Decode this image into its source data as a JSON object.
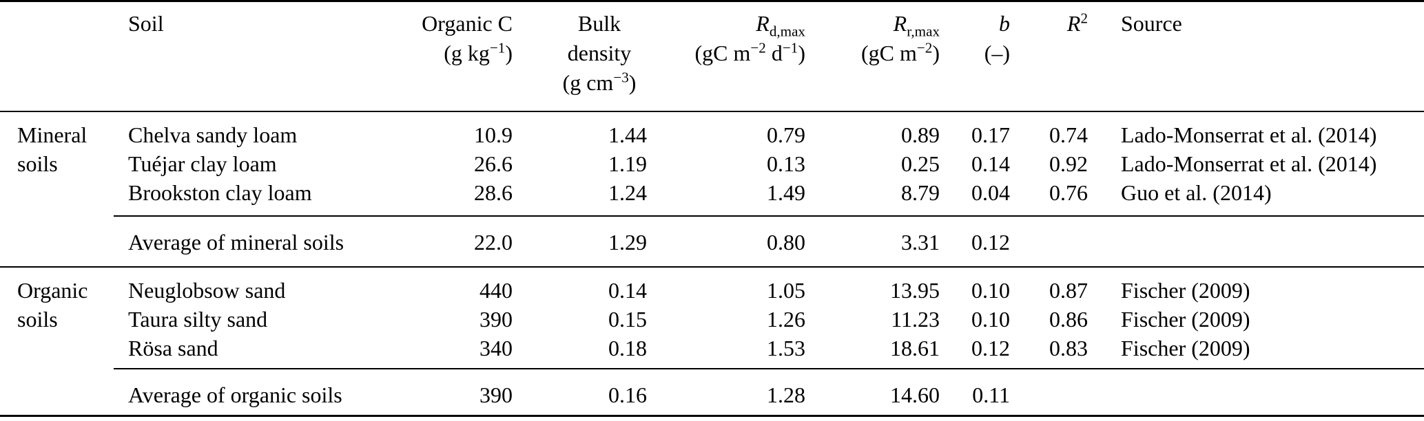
{
  "colors": {
    "background": "#ffffff",
    "text": "#000000",
    "rule": "#000000"
  },
  "header": {
    "group": "",
    "soil": "Soil",
    "organic_c": [
      "Organic C",
      "(g kg^{−1})"
    ],
    "bulk_density": [
      "Bulk",
      "density",
      "(g cm^{−3})"
    ],
    "rd_max": [
      "*R*_{d,max}",
      "(gC m^{−2} d^{−1})"
    ],
    "rr_max": [
      "*R*_{r,max}",
      "(gC m^{−2})"
    ],
    "b": [
      "*b*",
      "(–)"
    ],
    "r2": [
      "*R*^{2}"
    ],
    "source": "Source"
  },
  "sections": [
    {
      "group": [
        "Mineral",
        "soils"
      ],
      "rows": [
        {
          "soil": "Chelva sandy loam",
          "organic_c": "10.9",
          "bulk_density": "1.44",
          "rd_max": "0.79",
          "rr_max": "0.89",
          "b": "0.17",
          "r2": "0.74",
          "source": "Lado-Monserrat et al. (2014)"
        },
        {
          "soil": "Tuéjar clay loam",
          "organic_c": "26.6",
          "bulk_density": "1.19",
          "rd_max": "0.13",
          "rr_max": "0.25",
          "b": "0.14",
          "r2": "0.92",
          "source": "Lado-Monserrat et al. (2014)"
        },
        {
          "soil": "Brookston clay loam",
          "organic_c": "28.6",
          "bulk_density": "1.24",
          "rd_max": "1.49",
          "rr_max": "8.79",
          "b": "0.04",
          "r2": "0.76",
          "source": "Guo et al. (2014)"
        }
      ],
      "average": {
        "soil": "Average of mineral soils",
        "organic_c": "22.0",
        "bulk_density": "1.29",
        "rd_max": "0.80",
        "rr_max": "3.31",
        "b": "0.12",
        "r2": "",
        "source": ""
      }
    },
    {
      "group": [
        "Organic",
        "soils"
      ],
      "rows": [
        {
          "soil": "Neuglobsow sand",
          "organic_c": "440",
          "bulk_density": "0.14",
          "rd_max": "1.05",
          "rr_max": "13.95",
          "b": "0.10",
          "r2": "0.87",
          "source": "Fischer (2009)"
        },
        {
          "soil": "Taura silty sand",
          "organic_c": "390",
          "bulk_density": "0.15",
          "rd_max": "1.26",
          "rr_max": "11.23",
          "b": "0.10",
          "r2": "0.86",
          "source": "Fischer (2009)"
        },
        {
          "soil": "Rösa sand",
          "organic_c": "340",
          "bulk_density": "0.18",
          "rd_max": "1.53",
          "rr_max": "18.61",
          "b": "0.12",
          "r2": "0.83",
          "source": "Fischer (2009)"
        }
      ],
      "average": {
        "soil": "Average of organic soils",
        "organic_c": "390",
        "bulk_density": "0.16",
        "rd_max": "1.28",
        "rr_max": "14.60",
        "b": "0.11",
        "r2": "",
        "source": ""
      }
    }
  ]
}
